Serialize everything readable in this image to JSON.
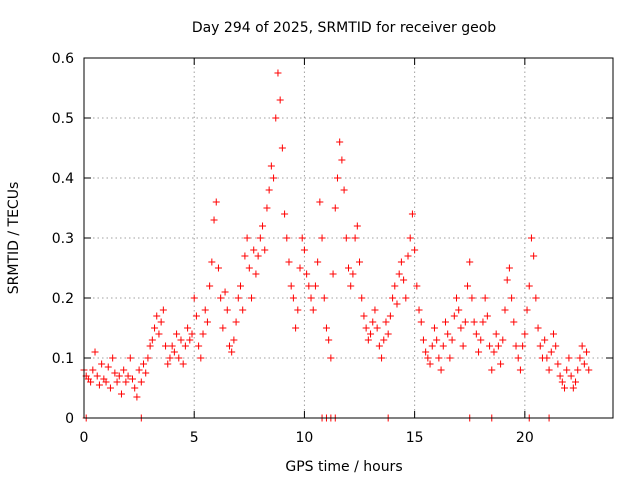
{
  "chart_data": {
    "type": "scatter",
    "title": "Day 294 of 2025, SRMTID for receiver geob",
    "xlabel": "GPS time / hours",
    "ylabel": "SRMTID / TECUs",
    "xlim": [
      0,
      24
    ],
    "ylim": [
      0,
      0.6
    ],
    "xticks": [
      0,
      5,
      10,
      15,
      20
    ],
    "xtick_labels": [
      "0",
      "5",
      "10",
      "15",
      "20"
    ],
    "yticks": [
      0,
      0.1,
      0.2,
      0.3,
      0.4,
      0.5,
      0.6
    ],
    "ytick_labels": [
      "0",
      "0.1",
      "0.2",
      "0.3",
      "0.4",
      "0.5",
      "0.6"
    ],
    "grid": true,
    "marker": "+",
    "series": [
      {
        "name": "SRMTID",
        "color": "#ff0000",
        "points": [
          [
            0.0,
            0.08
          ],
          [
            0.1,
            0.07
          ],
          [
            0.2,
            0.065
          ],
          [
            0.3,
            0.06
          ],
          [
            0.4,
            0.08
          ],
          [
            0.5,
            0.11
          ],
          [
            0.6,
            0.07
          ],
          [
            0.7,
            0.055
          ],
          [
            0.8,
            0.09
          ],
          [
            0.9,
            0.065
          ],
          [
            1.0,
            0.06
          ],
          [
            1.1,
            0.085
          ],
          [
            1.2,
            0.05
          ],
          [
            1.3,
            0.1
          ],
          [
            1.4,
            0.075
          ],
          [
            1.5,
            0.06
          ],
          [
            1.6,
            0.07
          ],
          [
            1.7,
            0.04
          ],
          [
            1.8,
            0.08
          ],
          [
            1.9,
            0.06
          ],
          [
            2.0,
            0.07
          ],
          [
            2.1,
            0.1
          ],
          [
            2.2,
            0.065
          ],
          [
            2.3,
            0.05
          ],
          [
            2.4,
            0.035
          ],
          [
            2.5,
            0.08
          ],
          [
            2.6,
            0.06
          ],
          [
            2.7,
            0.09
          ],
          [
            2.8,
            0.075
          ],
          [
            2.9,
            0.1
          ],
          [
            3.0,
            0.12
          ],
          [
            3.1,
            0.13
          ],
          [
            3.2,
            0.15
          ],
          [
            3.3,
            0.17
          ],
          [
            3.4,
            0.14
          ],
          [
            3.5,
            0.16
          ],
          [
            3.6,
            0.18
          ],
          [
            3.7,
            0.12
          ],
          [
            3.8,
            0.09
          ],
          [
            3.9,
            0.1
          ],
          [
            4.0,
            0.12
          ],
          [
            4.1,
            0.11
          ],
          [
            4.2,
            0.14
          ],
          [
            4.3,
            0.1
          ],
          [
            4.4,
            0.13
          ],
          [
            4.5,
            0.09
          ],
          [
            4.6,
            0.12
          ],
          [
            4.7,
            0.15
          ],
          [
            4.8,
            0.13
          ],
          [
            4.9,
            0.14
          ],
          [
            5.0,
            0.2
          ],
          [
            5.1,
            0.17
          ],
          [
            5.2,
            0.12
          ],
          [
            5.3,
            0.1
          ],
          [
            5.4,
            0.14
          ],
          [
            5.5,
            0.18
          ],
          [
            5.6,
            0.16
          ],
          [
            5.7,
            0.22
          ],
          [
            5.8,
            0.26
          ],
          [
            5.9,
            0.33
          ],
          [
            6.0,
            0.36
          ],
          [
            6.1,
            0.25
          ],
          [
            6.2,
            0.2
          ],
          [
            6.3,
            0.15
          ],
          [
            6.4,
            0.21
          ],
          [
            6.5,
            0.18
          ],
          [
            6.6,
            0.12
          ],
          [
            6.7,
            0.11
          ],
          [
            6.8,
            0.13
          ],
          [
            6.9,
            0.16
          ],
          [
            7.0,
            0.2
          ],
          [
            7.1,
            0.22
          ],
          [
            7.2,
            0.18
          ],
          [
            7.3,
            0.27
          ],
          [
            7.4,
            0.3
          ],
          [
            7.5,
            0.25
          ],
          [
            7.6,
            0.2
          ],
          [
            7.7,
            0.28
          ],
          [
            7.8,
            0.24
          ],
          [
            7.9,
            0.27
          ],
          [
            8.0,
            0.3
          ],
          [
            8.1,
            0.32
          ],
          [
            8.2,
            0.28
          ],
          [
            8.3,
            0.35
          ],
          [
            8.4,
            0.38
          ],
          [
            8.5,
            0.42
          ],
          [
            8.6,
            0.4
          ],
          [
            8.7,
            0.5
          ],
          [
            8.8,
            0.575
          ],
          [
            8.9,
            0.53
          ],
          [
            9.0,
            0.45
          ],
          [
            9.1,
            0.34
          ],
          [
            9.2,
            0.3
          ],
          [
            9.3,
            0.26
          ],
          [
            9.4,
            0.22
          ],
          [
            9.5,
            0.2
          ],
          [
            9.6,
            0.15
          ],
          [
            9.7,
            0.18
          ],
          [
            9.8,
            0.25
          ],
          [
            9.9,
            0.3
          ],
          [
            10.0,
            0.28
          ],
          [
            10.1,
            0.24
          ],
          [
            10.2,
            0.22
          ],
          [
            10.3,
            0.2
          ],
          [
            10.4,
            0.18
          ],
          [
            10.5,
            0.22
          ],
          [
            10.6,
            0.26
          ],
          [
            10.7,
            0.36
          ],
          [
            10.8,
            0.3
          ],
          [
            10.9,
            0.2
          ],
          [
            11.0,
            0.15
          ],
          [
            11.1,
            0.13
          ],
          [
            11.2,
            0.1
          ],
          [
            11.3,
            0.24
          ],
          [
            11.4,
            0.35
          ],
          [
            11.5,
            0.4
          ],
          [
            11.6,
            0.46
          ],
          [
            11.7,
            0.43
          ],
          [
            11.8,
            0.38
          ],
          [
            11.9,
            0.3
          ],
          [
            12.0,
            0.25
          ],
          [
            12.1,
            0.22
          ],
          [
            12.2,
            0.24
          ],
          [
            12.3,
            0.3
          ],
          [
            12.4,
            0.32
          ],
          [
            12.5,
            0.26
          ],
          [
            12.6,
            0.2
          ],
          [
            12.7,
            0.17
          ],
          [
            12.8,
            0.15
          ],
          [
            12.9,
            0.13
          ],
          [
            13.0,
            0.14
          ],
          [
            13.1,
            0.16
          ],
          [
            13.2,
            0.18
          ],
          [
            13.3,
            0.15
          ],
          [
            13.4,
            0.12
          ],
          [
            13.5,
            0.1
          ],
          [
            13.6,
            0.13
          ],
          [
            13.7,
            0.16
          ],
          [
            13.8,
            0.14
          ],
          [
            13.9,
            0.17
          ],
          [
            14.0,
            0.2
          ],
          [
            14.1,
            0.22
          ],
          [
            14.2,
            0.19
          ],
          [
            14.3,
            0.24
          ],
          [
            14.4,
            0.26
          ],
          [
            14.5,
            0.23
          ],
          [
            14.6,
            0.2
          ],
          [
            14.7,
            0.27
          ],
          [
            14.8,
            0.3
          ],
          [
            14.9,
            0.34
          ],
          [
            15.0,
            0.28
          ],
          [
            15.1,
            0.22
          ],
          [
            15.2,
            0.18
          ],
          [
            15.3,
            0.16
          ],
          [
            15.4,
            0.13
          ],
          [
            15.5,
            0.11
          ],
          [
            15.6,
            0.1
          ],
          [
            15.7,
            0.09
          ],
          [
            15.8,
            0.12
          ],
          [
            15.9,
            0.15
          ],
          [
            16.0,
            0.13
          ],
          [
            16.1,
            0.1
          ],
          [
            16.2,
            0.08
          ],
          [
            16.3,
            0.12
          ],
          [
            16.4,
            0.16
          ],
          [
            16.5,
            0.14
          ],
          [
            16.6,
            0.1
          ],
          [
            16.7,
            0.13
          ],
          [
            16.8,
            0.17
          ],
          [
            16.9,
            0.2
          ],
          [
            17.0,
            0.18
          ],
          [
            17.1,
            0.15
          ],
          [
            17.2,
            0.12
          ],
          [
            17.3,
            0.16
          ],
          [
            17.4,
            0.22
          ],
          [
            17.5,
            0.26
          ],
          [
            17.6,
            0.2
          ],
          [
            17.7,
            0.16
          ],
          [
            17.8,
            0.14
          ],
          [
            17.9,
            0.11
          ],
          [
            18.0,
            0.13
          ],
          [
            18.1,
            0.16
          ],
          [
            18.2,
            0.2
          ],
          [
            18.3,
            0.17
          ],
          [
            18.4,
            0.12
          ],
          [
            18.5,
            0.08
          ],
          [
            18.6,
            0.11
          ],
          [
            18.7,
            0.14
          ],
          [
            18.8,
            0.12
          ],
          [
            18.9,
            0.09
          ],
          [
            19.0,
            0.13
          ],
          [
            19.1,
            0.18
          ],
          [
            19.2,
            0.23
          ],
          [
            19.3,
            0.25
          ],
          [
            19.4,
            0.2
          ],
          [
            19.5,
            0.16
          ],
          [
            19.6,
            0.12
          ],
          [
            19.7,
            0.1
          ],
          [
            19.8,
            0.08
          ],
          [
            19.9,
            0.12
          ],
          [
            20.0,
            0.14
          ],
          [
            20.1,
            0.18
          ],
          [
            20.2,
            0.22
          ],
          [
            20.3,
            0.3
          ],
          [
            20.4,
            0.27
          ],
          [
            20.5,
            0.2
          ],
          [
            20.6,
            0.15
          ],
          [
            20.7,
            0.12
          ],
          [
            20.8,
            0.1
          ],
          [
            20.9,
            0.13
          ],
          [
            21.0,
            0.1
          ],
          [
            21.1,
            0.08
          ],
          [
            21.2,
            0.11
          ],
          [
            21.3,
            0.14
          ],
          [
            21.4,
            0.12
          ],
          [
            21.5,
            0.09
          ],
          [
            21.6,
            0.07
          ],
          [
            21.7,
            0.06
          ],
          [
            21.8,
            0.05
          ],
          [
            21.9,
            0.08
          ],
          [
            22.0,
            0.1
          ],
          [
            22.1,
            0.07
          ],
          [
            22.2,
            0.05
          ],
          [
            22.3,
            0.06
          ],
          [
            22.4,
            0.08
          ],
          [
            22.5,
            0.1
          ],
          [
            22.6,
            0.12
          ],
          [
            22.7,
            0.09
          ],
          [
            22.8,
            0.11
          ],
          [
            22.9,
            0.08
          ],
          [
            0.1,
            0.0
          ],
          [
            2.6,
            0.0
          ],
          [
            10.8,
            0.0
          ],
          [
            11.0,
            0.0
          ],
          [
            11.2,
            0.0
          ],
          [
            11.4,
            0.0
          ],
          [
            13.8,
            0.0
          ],
          [
            17.5,
            0.0
          ],
          [
            18.5,
            0.0
          ],
          [
            20.2,
            0.0
          ],
          [
            21.1,
            0.0
          ]
        ]
      }
    ]
  }
}
